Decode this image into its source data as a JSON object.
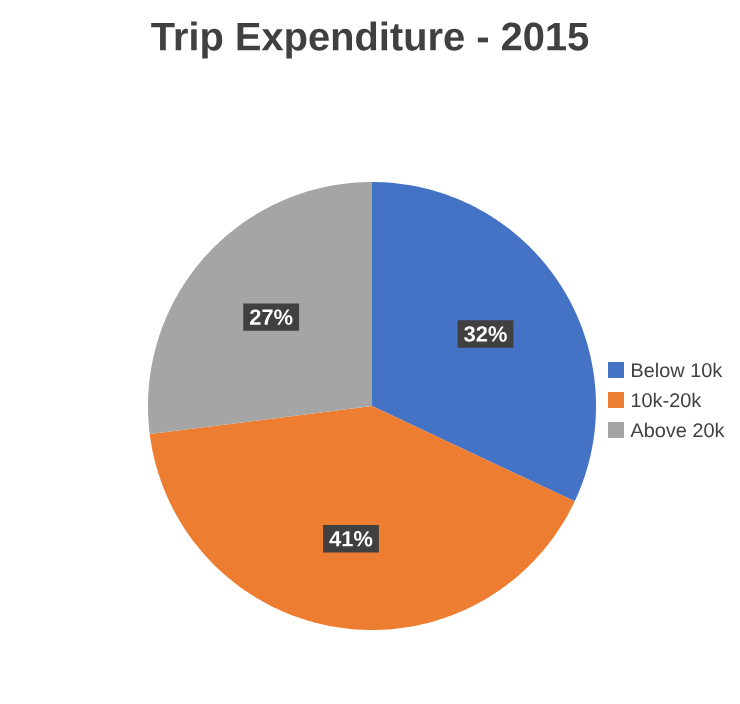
{
  "chart_data": {
    "type": "pie",
    "title": "Trip Expenditure - 2015",
    "categories": [
      "Below 10k",
      "10k-20k",
      "Above 20k"
    ],
    "values": [
      32,
      41,
      27
    ],
    "value_labels": [
      "32%",
      "41%",
      "27%"
    ],
    "colors": [
      "#4472c4",
      "#ed7d31",
      "#a5a5a5"
    ],
    "legend": "right"
  }
}
